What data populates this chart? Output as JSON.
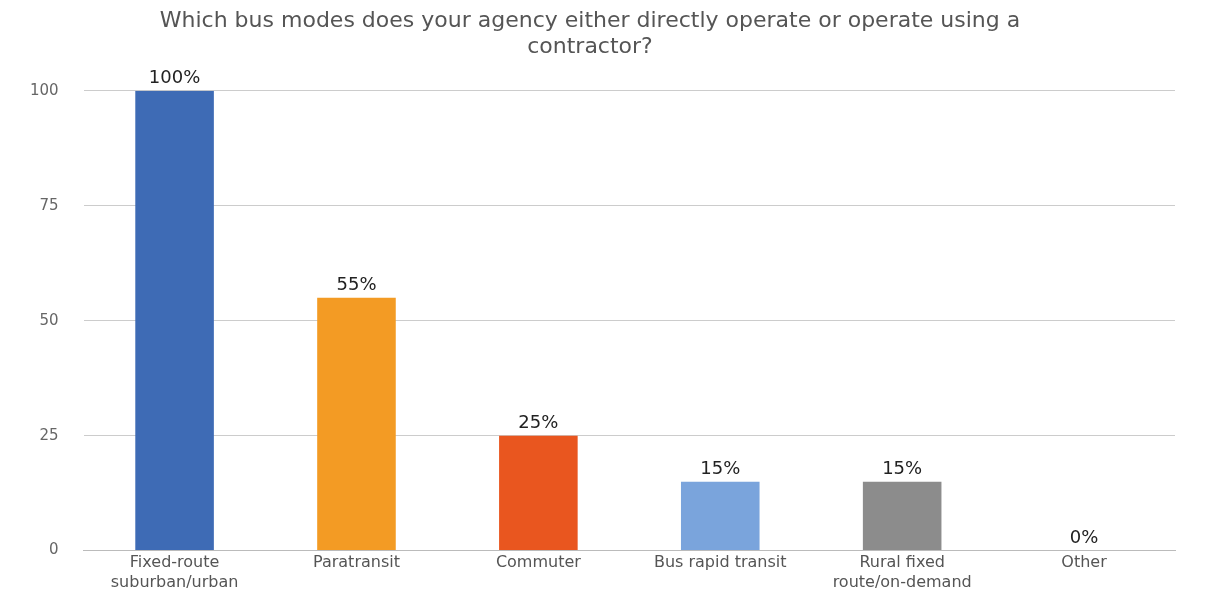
{
  "chart_data": {
    "type": "bar",
    "title": "Which bus modes does your agency either directly operate or operate using a contractor?",
    "categories": [
      "Fixed-route suburban/urban",
      "Paratransit",
      "Commuter",
      "Bus rapid transit",
      "Rural fixed route/on-demand",
      "Other"
    ],
    "values": [
      100,
      55,
      25,
      15,
      15,
      0
    ],
    "colors": [
      "#3e6bb5",
      "#f39b24",
      "#e9561f",
      "#7aa4dc",
      "#8c8c8c",
      "#a0a0a0"
    ],
    "value_labels": [
      "100%",
      "55%",
      "25%",
      "15%",
      "15%",
      "0%"
    ],
    "ylim": [
      0,
      100
    ],
    "yticks": [
      0,
      25,
      50,
      75,
      100
    ],
    "grid": "y",
    "legend": false
  }
}
